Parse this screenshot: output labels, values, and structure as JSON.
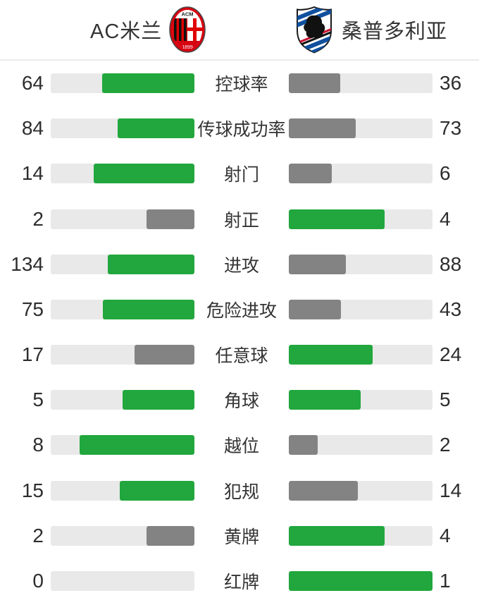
{
  "header": {
    "home_team": {
      "name": "AC米兰",
      "crest_icon": "ac-milan-crest-icon"
    },
    "away_team": {
      "name": "桑普多利亚",
      "crest_icon": "sampdoria-crest-icon"
    }
  },
  "colors": {
    "leading_fill": "#21a73d",
    "trailing_fill": "#838383",
    "bar_track": "#e9e9e9",
    "value_text": "#2d2d2d",
    "label_text": "#333333",
    "divider": "#ecebeb",
    "background": "#ffffff",
    "milan_red": "#d6020f",
    "sampdoria_blue": "#10509e",
    "sampdoria_red": "#c8102e"
  },
  "stats": {
    "rows": [
      {
        "label": "控球率",
        "home": 64,
        "away": 36
      },
      {
        "label": "传球成功率",
        "home": 84,
        "away": 73
      },
      {
        "label": "射门",
        "home": 14,
        "away": 6
      },
      {
        "label": "射正",
        "home": 2,
        "away": 4
      },
      {
        "label": "进攻",
        "home": 134,
        "away": 88
      },
      {
        "label": "危险进攻",
        "home": 75,
        "away": 43
      },
      {
        "label": "任意球",
        "home": 17,
        "away": 24
      },
      {
        "label": "角球",
        "home": 5,
        "away": 5
      },
      {
        "label": "越位",
        "home": 8,
        "away": 2
      },
      {
        "label": "犯规",
        "home": 15,
        "away": 14
      },
      {
        "label": "黄牌",
        "home": 2,
        "away": 4
      },
      {
        "label": "红牌",
        "home": 0,
        "away": 1
      }
    ]
  },
  "chart_data": {
    "type": "bar",
    "title": "",
    "categories": [
      "控球率",
      "传球成功率",
      "射门",
      "射正",
      "进攻",
      "危险进攻",
      "任意球",
      "角球",
      "越位",
      "犯规",
      "黄牌",
      "红牌"
    ],
    "series": [
      {
        "name": "AC米兰",
        "values": [
          64,
          84,
          14,
          2,
          134,
          75,
          17,
          5,
          8,
          15,
          2,
          0
        ]
      },
      {
        "name": "桑普多利亚",
        "values": [
          36,
          73,
          6,
          4,
          88,
          43,
          24,
          5,
          2,
          14,
          4,
          1
        ]
      }
    ],
    "layout": "paired horizontal bars; each bar fill = value / (home+away) of its row; leading side green (#21a73d), trailing side gray (#838383), tie = both green; home bars grow leftward from center, away bars grow rightward",
    "legend_position": "header shows team names with crests",
    "grid": false
  }
}
